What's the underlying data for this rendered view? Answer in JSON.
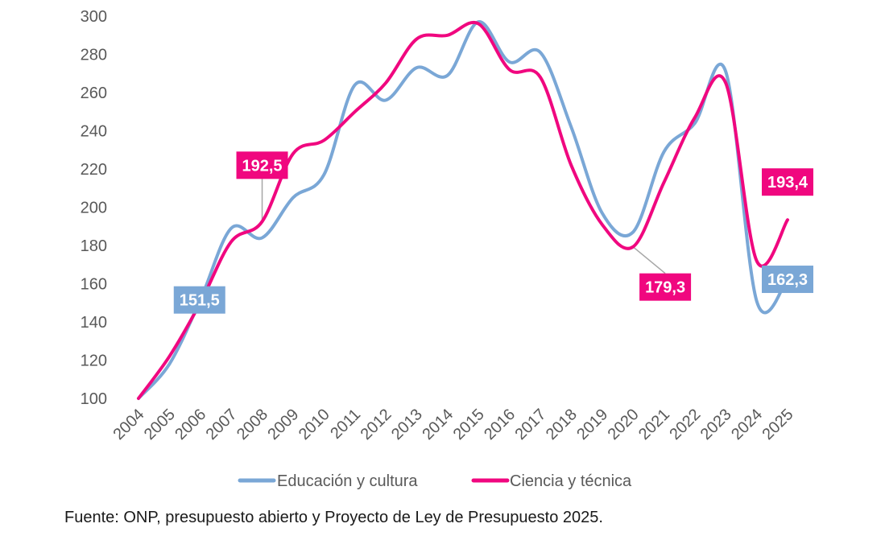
{
  "chart_data": {
    "type": "line",
    "title": "",
    "xlabel": "",
    "ylabel": "",
    "ylim": [
      100,
      300
    ],
    "y_ticks": [
      "100",
      "120",
      "140",
      "160",
      "180",
      "200",
      "220",
      "240",
      "260",
      "280",
      "300"
    ],
    "x": [
      "2004",
      "2005",
      "2006",
      "2007",
      "2008",
      "2009",
      "2010",
      "2011",
      "2012",
      "2013",
      "2014",
      "2015",
      "2016",
      "2017",
      "2018",
      "2019",
      "2020",
      "2021",
      "2022",
      "2023",
      "2024",
      "2025"
    ],
    "grid": false,
    "legend_position": "bottom",
    "series": [
      {
        "name": "Educación y cultura",
        "color": "#7aa7d6",
        "values": [
          100,
          118,
          151.5,
          189,
          184,
          205,
          217,
          264,
          256,
          273,
          269,
          297,
          276,
          281,
          242,
          197,
          187,
          229,
          244,
          271,
          151,
          162.3
        ]
      },
      {
        "name": "Ciencia y técnica",
        "color": "#f0077f",
        "values": [
          100,
          122,
          150,
          182,
          192.5,
          228,
          235,
          250,
          265,
          288,
          290,
          296,
          272,
          268,
          222,
          191,
          179.3,
          213,
          247,
          265,
          172,
          193.4
        ]
      }
    ],
    "annotations": [
      {
        "text": "151,5",
        "series": 0,
        "x": "2006",
        "color": "#7aa7d6"
      },
      {
        "text": "192,5",
        "series": 1,
        "x": "2008",
        "color": "#f0077f"
      },
      {
        "text": "179,3",
        "series": 1,
        "x": "2020",
        "color": "#f0077f"
      },
      {
        "text": "193,4",
        "series": 1,
        "x": "2025",
        "color": "#f0077f"
      },
      {
        "text": "162,3",
        "series": 0,
        "x": "2025",
        "color": "#7aa7d6"
      }
    ]
  },
  "source": "Fuente: ONP, presupuesto abierto y Proyecto de Ley de Presupuesto 2025."
}
